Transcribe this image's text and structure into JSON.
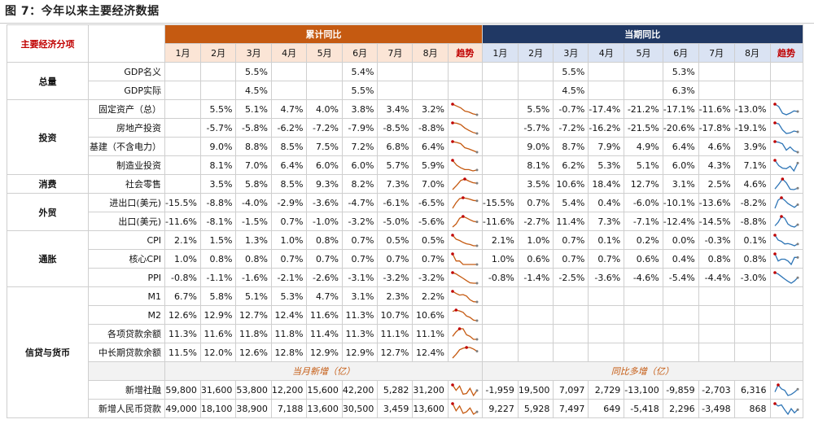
{
  "title": "图 7：今年以来主要经济数据",
  "corner_label": "主要经济分项",
  "cumulative_label": "累计同比",
  "current_label": "当期同比",
  "trend_label": "趋势",
  "months": [
    "1月",
    "2月",
    "3月",
    "4月",
    "5月",
    "6月",
    "7月",
    "8月"
  ],
  "sub_labels": {
    "monthly_new": "当月新增（亿）",
    "yoy_more": "同比多增（亿）"
  },
  "colors": {
    "orange": "#c55a11",
    "navy": "#203864",
    "orange_light": "#fbe5d6",
    "navy_light": "#dae3f3",
    "marker": "#c00000",
    "spark_orange": "#c55a11",
    "spark_blue": "#2e75b6"
  },
  "groups": [
    {
      "name": "总量",
      "rows": [
        {
          "label": "GDP名义",
          "cum": [
            "",
            "",
            "5.5%",
            "",
            "",
            "5.4%",
            "",
            ""
          ],
          "cur": [
            "",
            "",
            "5.5%",
            "",
            "",
            "5.3%",
            "",
            ""
          ],
          "cum_num": null,
          "cur_num": null
        },
        {
          "label": "GDP实际",
          "cum": [
            "",
            "",
            "4.5%",
            "",
            "",
            "5.5%",
            "",
            ""
          ],
          "cur": [
            "",
            "",
            "4.5%",
            "",
            "",
            "6.3%",
            "",
            ""
          ],
          "cum_num": null,
          "cur_num": null
        }
      ]
    },
    {
      "name": "投资",
      "rows": [
        {
          "label": "固定资产（总）",
          "cum": [
            "",
            "5.5%",
            "5.1%",
            "4.7%",
            "4.0%",
            "3.8%",
            "3.4%",
            "3.2%"
          ],
          "cur": [
            "",
            "5.5%",
            "-0.7%",
            "-17.4%",
            "-21.2%",
            "-17.1%",
            "-11.6%",
            "-13.0%"
          ],
          "cum_num": [
            5.5,
            5.1,
            4.7,
            4.0,
            3.8,
            3.4,
            3.2
          ],
          "cur_num": [
            5.5,
            -0.7,
            -17.4,
            -21.2,
            -17.1,
            -11.6,
            -13.0
          ]
        },
        {
          "label": "房地产投资",
          "cum": [
            "",
            "-5.7%",
            "-5.8%",
            "-6.2%",
            "-7.2%",
            "-7.9%",
            "-8.5%",
            "-8.8%"
          ],
          "cur": [
            "",
            "-5.7%",
            "-7.2%",
            "-16.2%",
            "-21.5%",
            "-20.6%",
            "-17.8%",
            "-19.1%"
          ],
          "cum_num": [
            -5.7,
            -5.8,
            -6.2,
            -7.2,
            -7.9,
            -8.5,
            -8.8
          ],
          "cur_num": [
            -5.7,
            -7.2,
            -16.2,
            -21.5,
            -20.6,
            -17.8,
            -19.1
          ]
        },
        {
          "label": "基建（不含电力）",
          "cum": [
            "",
            "9.0%",
            "8.8%",
            "8.5%",
            "7.5%",
            "7.2%",
            "6.8%",
            "6.4%"
          ],
          "cur": [
            "",
            "9.0%",
            "8.7%",
            "7.9%",
            "4.9%",
            "6.4%",
            "4.6%",
            "3.9%"
          ],
          "cum_num": [
            9.0,
            8.8,
            8.5,
            7.5,
            7.2,
            6.8,
            6.4
          ],
          "cur_num": [
            9.0,
            8.7,
            7.9,
            4.9,
            6.4,
            4.6,
            3.9
          ]
        },
        {
          "label": "制造业投资",
          "cum": [
            "",
            "8.1%",
            "7.0%",
            "6.4%",
            "6.0%",
            "6.0%",
            "5.7%",
            "5.9%"
          ],
          "cur": [
            "",
            "8.1%",
            "6.2%",
            "5.3%",
            "5.1%",
            "6.0%",
            "4.3%",
            "7.1%"
          ],
          "cum_num": [
            8.1,
            7.0,
            6.4,
            6.0,
            6.0,
            5.7,
            5.9
          ],
          "cur_num": [
            8.1,
            6.2,
            5.3,
            5.1,
            6.0,
            4.3,
            7.1
          ]
        }
      ]
    },
    {
      "name": "消费",
      "rows": [
        {
          "label": "社会零售",
          "cum": [
            "",
            "3.5%",
            "5.8%",
            "8.5%",
            "9.3%",
            "8.2%",
            "7.3%",
            "7.0%"
          ],
          "cur": [
            "",
            "3.5%",
            "10.6%",
            "18.4%",
            "12.7%",
            "3.1%",
            "2.5%",
            "4.6%"
          ],
          "cum_num": [
            3.5,
            5.8,
            8.5,
            9.3,
            8.2,
            7.3,
            7.0
          ],
          "cur_num": [
            3.5,
            10.6,
            18.4,
            12.7,
            3.1,
            2.5,
            4.6
          ]
        }
      ]
    },
    {
      "name": "外贸",
      "rows": [
        {
          "label": "进出口(美元)",
          "cum": [
            "-15.5%",
            "-8.8%",
            "-4.0%",
            "-2.9%",
            "-3.6%",
            "-4.7%",
            "-6.1%",
            "-6.5%"
          ],
          "cur": [
            "-15.5%",
            "0.7%",
            "5.4%",
            "0.4%",
            "-6.0%",
            "-10.1%",
            "-13.6%",
            "-8.2%"
          ],
          "cum_num": [
            -15.5,
            -8.8,
            -4.0,
            -2.9,
            -3.6,
            -4.7,
            -6.1,
            -6.5
          ],
          "cur_num": [
            -15.5,
            0.7,
            5.4,
            0.4,
            -6.0,
            -10.1,
            -13.6,
            -8.2
          ]
        },
        {
          "label": "出口(美元)",
          "cum": [
            "-11.6%",
            "-8.1%",
            "-1.5%",
            "0.7%",
            "-1.0%",
            "-3.2%",
            "-5.0%",
            "-5.6%"
          ],
          "cur": [
            "-11.6%",
            "-2.7%",
            "11.4%",
            "7.3%",
            "-7.1%",
            "-12.4%",
            "-14.5%",
            "-8.8%"
          ],
          "cum_num": [
            -11.6,
            -8.1,
            -1.5,
            0.7,
            -1.0,
            -3.2,
            -5.0,
            -5.6
          ],
          "cur_num": [
            -11.6,
            -2.7,
            11.4,
            7.3,
            -7.1,
            -12.4,
            -14.5,
            -8.8
          ]
        }
      ]
    },
    {
      "name": "通胀",
      "rows": [
        {
          "label": "CPI",
          "cum": [
            "2.1%",
            "1.5%",
            "1.3%",
            "1.0%",
            "0.8%",
            "0.7%",
            "0.5%",
            "0.5%"
          ],
          "cur": [
            "2.1%",
            "1.0%",
            "0.7%",
            "0.1%",
            "0.2%",
            "0.0%",
            "-0.3%",
            "0.1%"
          ],
          "cum_num": [
            2.1,
            1.5,
            1.3,
            1.0,
            0.8,
            0.7,
            0.5,
            0.5
          ],
          "cur_num": [
            2.1,
            1.0,
            0.7,
            0.1,
            0.2,
            0.0,
            -0.3,
            0.1
          ]
        },
        {
          "label": "核心CPI",
          "cum": [
            "1.0%",
            "0.8%",
            "0.8%",
            "0.7%",
            "0.7%",
            "0.7%",
            "0.7%",
            "0.7%"
          ],
          "cur": [
            "1.0%",
            "0.6%",
            "0.7%",
            "0.7%",
            "0.6%",
            "0.4%",
            "0.8%",
            "0.8%"
          ],
          "cum_num": [
            1.0,
            0.8,
            0.8,
            0.7,
            0.7,
            0.7,
            0.7,
            0.7
          ],
          "cur_num": [
            1.0,
            0.6,
            0.7,
            0.7,
            0.6,
            0.4,
            0.8,
            0.8
          ]
        },
        {
          "label": "PPI",
          "cum": [
            "-0.8%",
            "-1.1%",
            "-1.6%",
            "-2.1%",
            "-2.6%",
            "-3.1%",
            "-3.2%",
            "-3.2%"
          ],
          "cur": [
            "-0.8%",
            "-1.4%",
            "-2.5%",
            "-3.6%",
            "-4.6%",
            "-5.4%",
            "-4.4%",
            "-3.0%"
          ],
          "cum_num": [
            -0.8,
            -1.1,
            -1.6,
            -2.1,
            -2.6,
            -3.1,
            -3.2,
            -3.2
          ],
          "cur_num": [
            -0.8,
            -1.4,
            -2.5,
            -3.6,
            -4.6,
            -5.4,
            -4.4,
            -3.0
          ]
        }
      ]
    },
    {
      "name": "信贷与货币",
      "rows": [
        {
          "label": "M1",
          "cum": [
            "6.7%",
            "5.8%",
            "5.1%",
            "5.3%",
            "4.7%",
            "3.1%",
            "2.3%",
            "2.2%"
          ],
          "cur": [
            "",
            "",
            "",
            "",
            "",
            "",
            "",
            ""
          ],
          "cum_num": [
            6.7,
            5.8,
            5.1,
            5.3,
            4.7,
            3.1,
            2.3,
            2.2
          ],
          "cur_num": null
        },
        {
          "label": "M2",
          "cum": [
            "12.6%",
            "12.9%",
            "12.7%",
            "12.4%",
            "11.6%",
            "11.3%",
            "10.7%",
            "10.6%"
          ],
          "cur": [
            "",
            "",
            "",
            "",
            "",
            "",
            "",
            ""
          ],
          "cum_num": [
            12.6,
            12.9,
            12.7,
            12.4,
            11.6,
            11.3,
            10.7,
            10.6
          ],
          "cur_num": null
        },
        {
          "label": "各项贷款余额",
          "cum": [
            "11.3%",
            "11.6%",
            "11.8%",
            "11.8%",
            "11.4%",
            "11.3%",
            "11.1%",
            "11.1%"
          ],
          "cur": [
            "",
            "",
            "",
            "",
            "",
            "",
            "",
            ""
          ],
          "cum_num": [
            11.3,
            11.6,
            11.8,
            11.8,
            11.4,
            11.3,
            11.1,
            11.1
          ],
          "cur_num": null
        },
        {
          "label": "中长期贷款余额",
          "cum": [
            "11.5%",
            "12.0%",
            "12.6%",
            "12.8%",
            "12.9%",
            "12.9%",
            "12.7%",
            "12.4%"
          ],
          "cur": [
            "",
            "",
            "",
            "",
            "",
            "",
            "",
            ""
          ],
          "cum_num": [
            11.5,
            12.0,
            12.6,
            12.8,
            12.9,
            12.9,
            12.7,
            12.4
          ],
          "cur_num": null
        },
        {
          "sublabel_row": true
        },
        {
          "label": "新增社融",
          "cum": [
            "59,800",
            "31,600",
            "53,800",
            "12,200",
            "15,600",
            "42,200",
            "5,282",
            "31,200"
          ],
          "cur": [
            "-1,959",
            "19,500",
            "7,097",
            "2,729",
            "-13,100",
            "-9,859",
            "-2,703",
            "6,316"
          ],
          "cum_num": [
            59800,
            31600,
            53800,
            12200,
            15600,
            42200,
            5282,
            31200
          ],
          "cur_num": [
            -1959,
            19500,
            7097,
            2729,
            -13100,
            -9859,
            -2703,
            6316
          ]
        },
        {
          "label": "新增人民币贷款",
          "cum": [
            "49,000",
            "18,100",
            "38,900",
            "7,188",
            "13,600",
            "30,500",
            "3,459",
            "13,600"
          ],
          "cur": [
            "9,227",
            "5,928",
            "7,497",
            "649",
            "-5,418",
            "2,296",
            "-3,498",
            "868"
          ],
          "cum_num": [
            49000,
            18100,
            38900,
            7188,
            13600,
            30500,
            3459,
            13600
          ],
          "cur_num": [
            9227,
            5928,
            7497,
            649,
            -5418,
            2296,
            -3498,
            868
          ]
        }
      ]
    }
  ]
}
